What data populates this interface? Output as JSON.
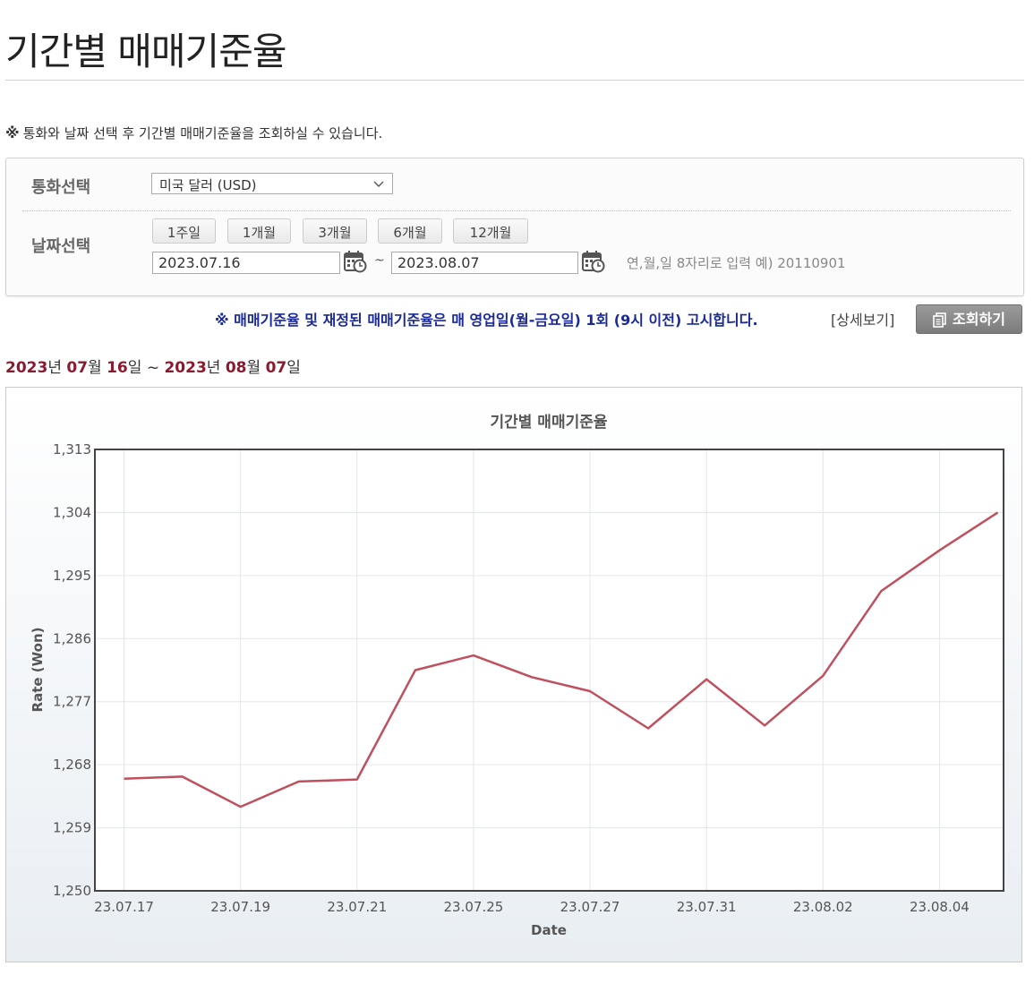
{
  "page": {
    "title": "기간별 매매기준율",
    "notice_mark": "※",
    "notice_text": "통화와 날짜 선택 후 기간별 매매기준율을 조회하실 수 있습니다."
  },
  "search": {
    "currency_label": "통화선택",
    "currency_value": "미국 달러 (USD)",
    "date_label": "날짜선택",
    "period_buttons": [
      "1주일",
      "1개월",
      "3개월",
      "6개월",
      "12개월"
    ],
    "start_date": "2023.07.16",
    "tilde": "~",
    "end_date": "2023.08.07",
    "date_hint": "연,월,일 8자리로 입력 예) 20110901"
  },
  "bulletin": {
    "text": "※ 매매기준율 및 재정된 매매기준율은 매 영업일(월-금요일) 1회 (9시 이전) 고시합니다.",
    "detail_link": "[상세보기]",
    "query_button": "조회하기"
  },
  "range": {
    "y1": "2023",
    "u_y": "년",
    "m1": "07",
    "u_m": "월",
    "d1": "16",
    "u_d": "일",
    "sep": "~",
    "y2": "2023",
    "m2": "08",
    "d2": "07"
  },
  "colors": {
    "line": "#c0505e",
    "bulletin": "#1a2a9a",
    "range_num": "#8a1a2e"
  },
  "chart_data": {
    "type": "line",
    "title": "기간별 매매기준율",
    "xlabel": "Date",
    "ylabel": "Rate (Won)",
    "ylim": [
      1250,
      1313
    ],
    "yticks": [
      "1,250",
      "1,259",
      "1,268",
      "1,277",
      "1,286",
      "1,295",
      "1,304",
      "1,313"
    ],
    "ytick_values": [
      1250,
      1259,
      1268,
      1277,
      1286,
      1295,
      1304,
      1313
    ],
    "xticks": [
      "23.07.17",
      "23.07.19",
      "23.07.21",
      "23.07.25",
      "23.07.27",
      "23.07.31",
      "23.08.02",
      "23.08.04"
    ],
    "x": [
      "23.07.17",
      "23.07.18",
      "23.07.19",
      "23.07.20",
      "23.07.21",
      "23.07.24",
      "23.07.25",
      "23.07.26",
      "23.07.27",
      "23.07.28",
      "23.07.31",
      "23.08.01",
      "23.08.02",
      "23.08.03",
      "23.08.04",
      "23.08.07"
    ],
    "series": [
      {
        "values": [
          1266.0,
          1266.3,
          1262.0,
          1265.6,
          1265.9,
          1281.5,
          1283.6,
          1280.5,
          1278.5,
          1273.2,
          1280.2,
          1273.6,
          1280.7,
          1292.8,
          1298.6,
          1304.0
        ]
      }
    ],
    "grid": true,
    "legend": "none"
  }
}
